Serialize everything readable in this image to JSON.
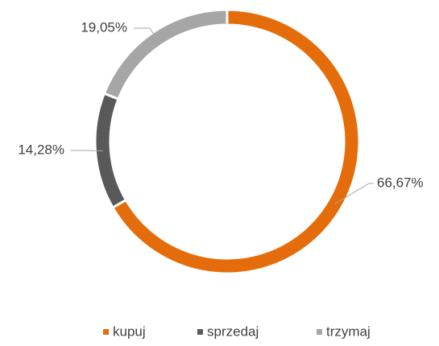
{
  "chart_data": {
    "type": "donut",
    "categories": [
      "kupuj",
      "sprzedaj",
      "trzymaj"
    ],
    "values": [
      66.67,
      14.28,
      19.05
    ],
    "value_labels": [
      "66,67%",
      "14,28%",
      "19,05%"
    ],
    "colors": [
      "#e46c0a",
      "#595959",
      "#a6a6a6"
    ],
    "legend": "bottom"
  }
}
